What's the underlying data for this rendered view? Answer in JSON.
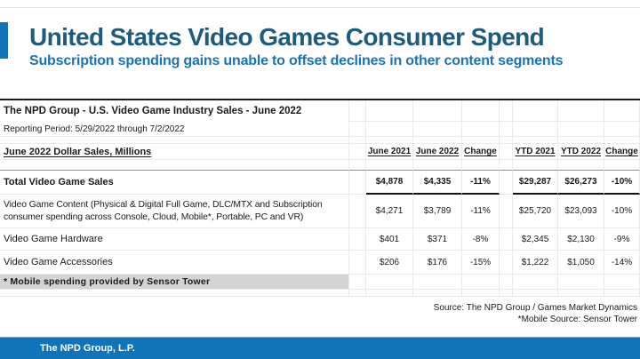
{
  "slide": {
    "title": "United States Video Games Consumer Spend",
    "subtitle": "Subscription spending gains unable to offset declines in other content segments"
  },
  "table": {
    "title": "The NPD Group - U.S. Video Game Industry Sales - June 2022",
    "reporting_period": "Reporting Period: 5/29/2022 through 7/2/2022",
    "row_header": "June 2022 Dollar Sales, Millions",
    "col_headers": [
      "June 2021",
      "June 2022",
      "Change",
      "YTD 2021",
      "YTD 2022",
      "Change"
    ],
    "rows": [
      {
        "label": "Total Video Game Sales",
        "values": [
          "$4,878",
          "$4,335",
          "-11%",
          "$29,287",
          "$26,273",
          "-10%"
        ]
      },
      {
        "label": "Video Game Content (Physical & Digital Full Game, DLC/MTX and Subscription consumer spending across Console, Cloud, Mobile*, Portable, PC and VR)",
        "values": [
          "$4,271",
          "$3,789",
          "-11%",
          "$25,720",
          "$23,093",
          "-10%"
        ]
      },
      {
        "label": "Video Game Hardware",
        "values": [
          "$401",
          "$371",
          "-8%",
          "$2,345",
          "$2,130",
          "-9%"
        ]
      },
      {
        "label": "Video Game Accessories",
        "values": [
          "$206",
          "$176",
          "-15%",
          "$1,222",
          "$1,050",
          "-14%"
        ]
      }
    ],
    "footnote": "* Mobile spending provided by Sensor Tower"
  },
  "source": {
    "line1": "Source: The NPD Group / Games Market Dynamics",
    "line2": "*Mobile Source: Sensor Tower"
  },
  "footer": {
    "label": "The NPD Group, L.P."
  },
  "colors": {
    "title_blue": "#1D5B80",
    "subtitle_blue": "#1A73B8",
    "accent_blue": "#1173BA",
    "footnote_gray": "#D4D4D4"
  }
}
